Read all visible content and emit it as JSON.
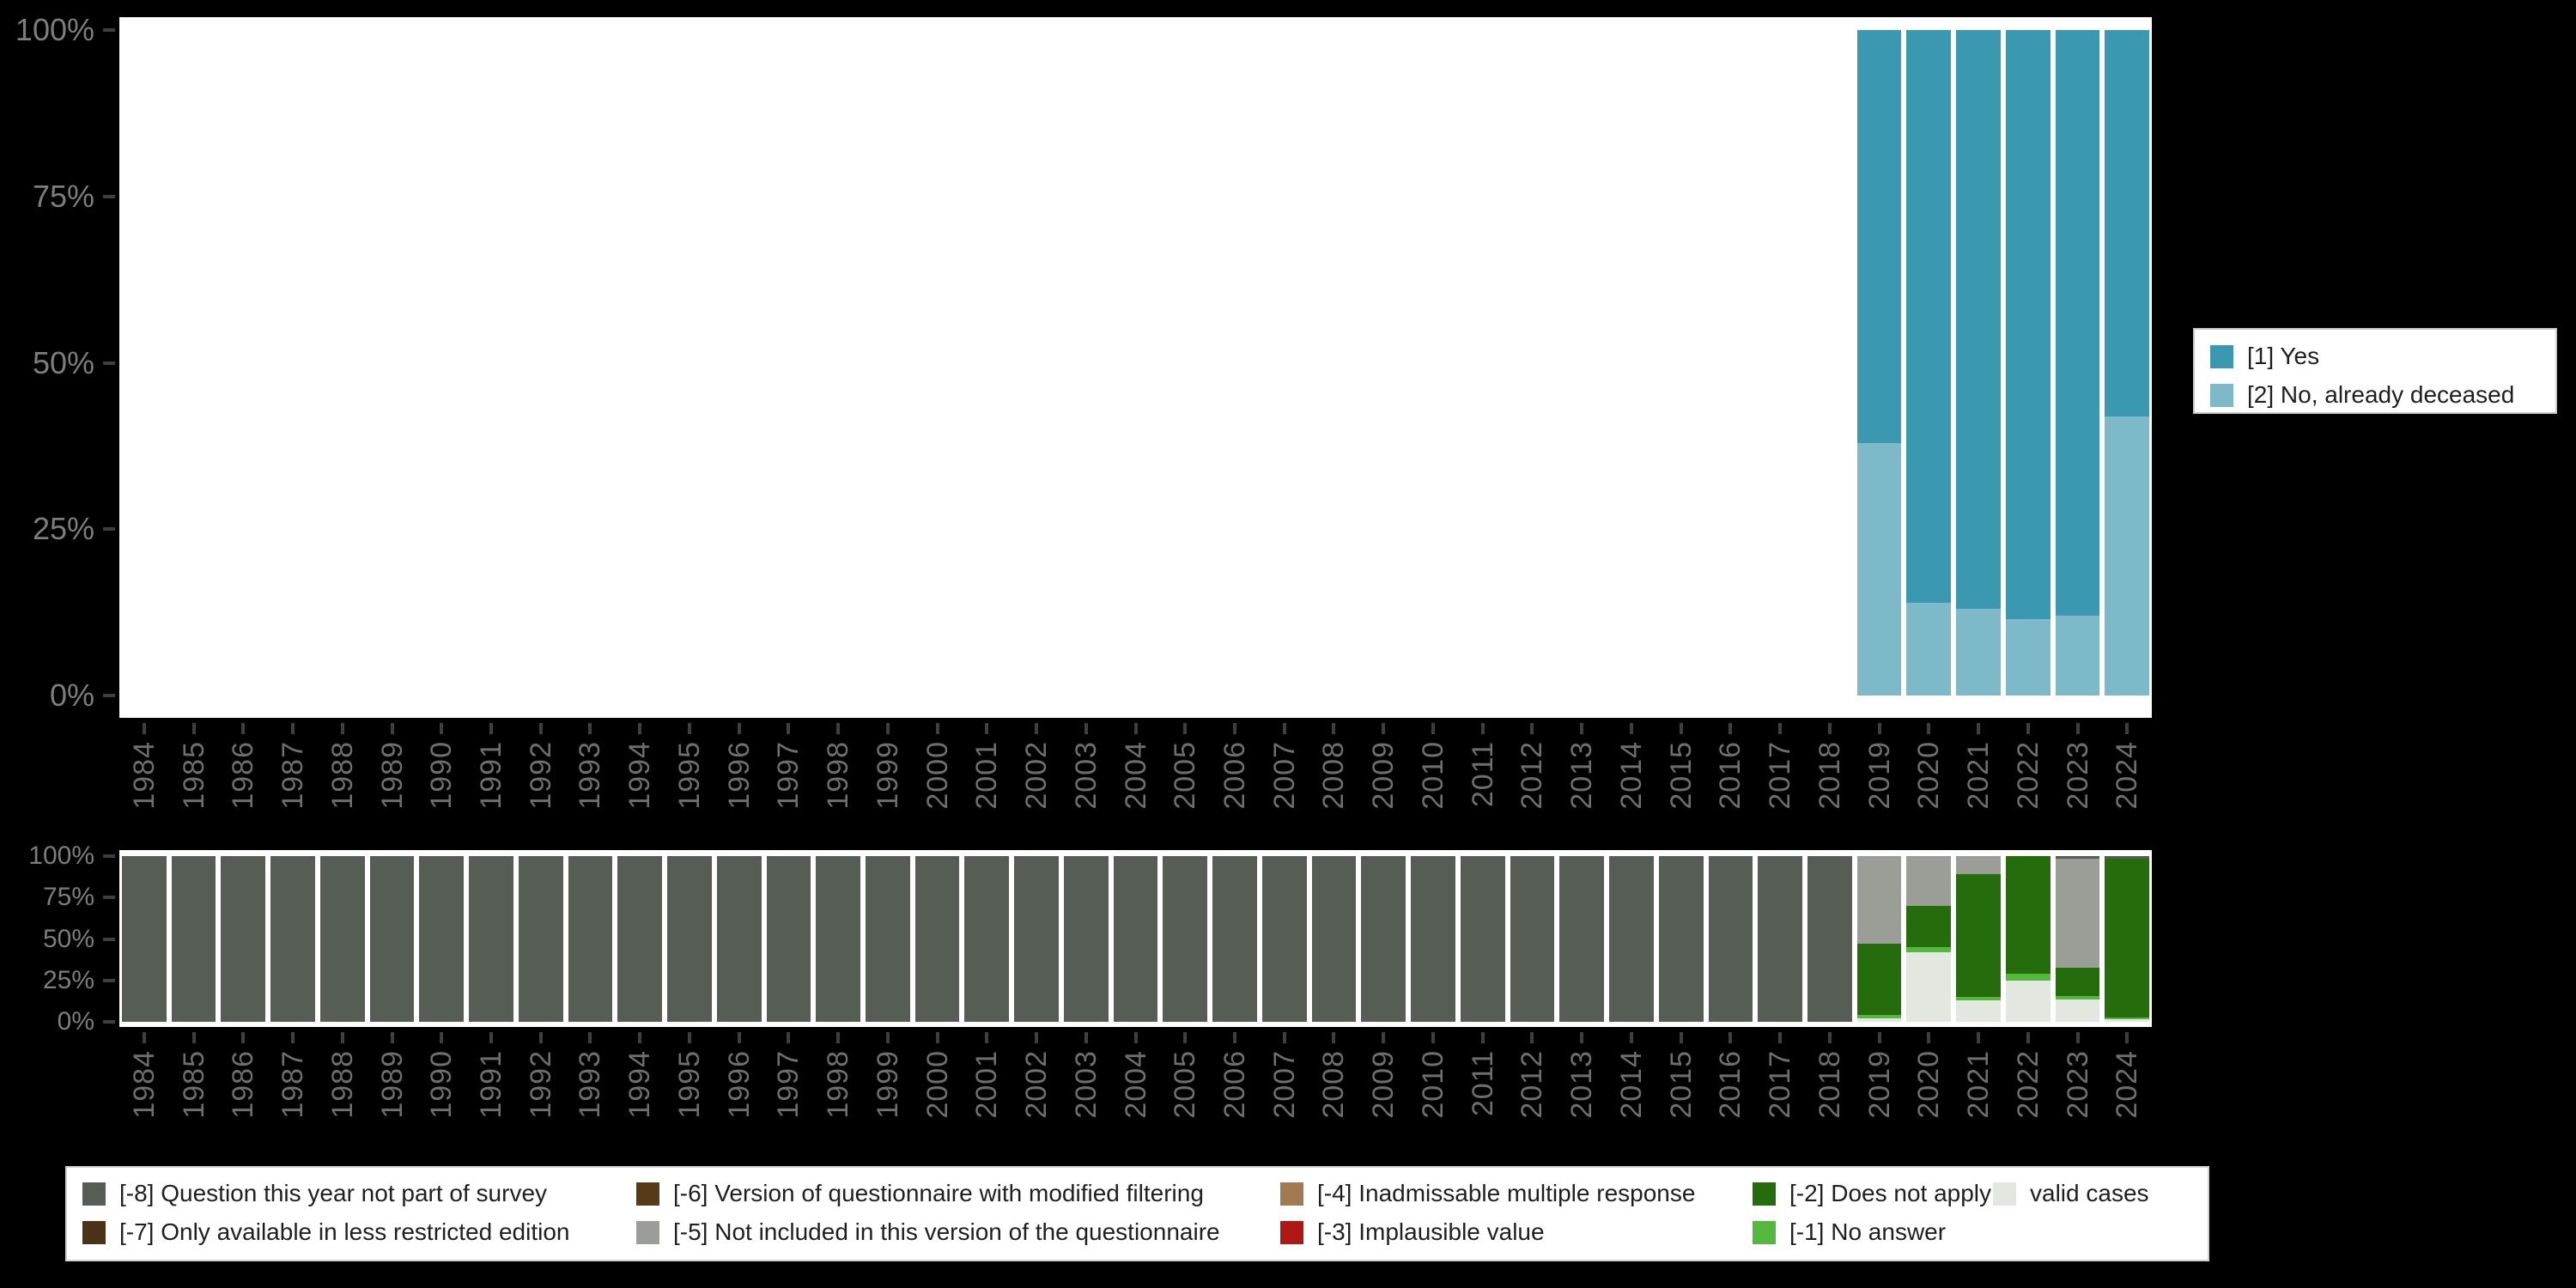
{
  "palette": {
    "yes": "#3a98b0",
    "no_deceased": "#7db9c8",
    "-8": "#565d54",
    "-7": "#4b3118",
    "-6": "#573a17",
    "-5": "#9a9e96",
    "-4": "#a27a52",
    "-3": "#b01813",
    "-2": "#256c0d",
    "-1": "#55b83e",
    "valid": "#e2e7e0"
  },
  "ui_colors": {
    "background": "#000000",
    "plot_background": "#ffffff",
    "y_axis_label": "#7d7d7d",
    "x_axis_label": "#6e6e6e",
    "tick_mark": "#3f3f3f",
    "legend_text": "#1f1f1f"
  },
  "response_legend": {
    "entries": [
      {
        "code": "yes",
        "label": "[1] Yes"
      },
      {
        "code": "no_deceased",
        "label": "[2] No, already deceased"
      }
    ]
  },
  "missing_legend": {
    "columns": [
      [
        {
          "code": "-8",
          "label": "[-8] Question this year not part of survey"
        },
        {
          "code": "-7",
          "label": "[-7] Only available in less restricted edition"
        }
      ],
      [
        {
          "code": "-6",
          "label": "[-6] Version of questionnaire with modified filtering"
        },
        {
          "code": "-5",
          "label": "[-5] Not included in this version of the questionnaire"
        }
      ],
      [
        {
          "code": "-4",
          "label": "[-4] Inadmissable multiple response"
        },
        {
          "code": "-3",
          "label": "[-3] Implausible value"
        }
      ],
      [
        {
          "code": "-2",
          "label": "[-2] Does not apply"
        },
        {
          "code": "-1",
          "label": "[-1] No answer"
        }
      ],
      [
        {
          "code": "valid",
          "label": "valid cases"
        }
      ]
    ]
  },
  "chart_data": [
    {
      "id": "responses",
      "type": "bar",
      "subtype": "stacked_percent",
      "title": "",
      "ylabel": "",
      "xlabel": "",
      "ylim": [
        0,
        100
      ],
      "grid": false,
      "legend_position": "right",
      "y_ticks": [
        "0%",
        "25%",
        "50%",
        "75%",
        "100%"
      ],
      "series_names": [
        "[1] Yes",
        "[2] No, already deceased"
      ],
      "bars": [
        {
          "year": 1984,
          "segments": []
        },
        {
          "year": 1985,
          "segments": []
        },
        {
          "year": 1986,
          "segments": []
        },
        {
          "year": 1987,
          "segments": []
        },
        {
          "year": 1988,
          "segments": []
        },
        {
          "year": 1989,
          "segments": []
        },
        {
          "year": 1990,
          "segments": []
        },
        {
          "year": 1991,
          "segments": []
        },
        {
          "year": 1992,
          "segments": []
        },
        {
          "year": 1993,
          "segments": []
        },
        {
          "year": 1994,
          "segments": []
        },
        {
          "year": 1995,
          "segments": []
        },
        {
          "year": 1996,
          "segments": []
        },
        {
          "year": 1997,
          "segments": []
        },
        {
          "year": 1998,
          "segments": []
        },
        {
          "year": 1999,
          "segments": []
        },
        {
          "year": 2000,
          "segments": []
        },
        {
          "year": 2001,
          "segments": []
        },
        {
          "year": 2002,
          "segments": []
        },
        {
          "year": 2003,
          "segments": []
        },
        {
          "year": 2004,
          "segments": []
        },
        {
          "year": 2005,
          "segments": []
        },
        {
          "year": 2006,
          "segments": []
        },
        {
          "year": 2007,
          "segments": []
        },
        {
          "year": 2008,
          "segments": []
        },
        {
          "year": 2009,
          "segments": []
        },
        {
          "year": 2010,
          "segments": []
        },
        {
          "year": 2011,
          "segments": []
        },
        {
          "year": 2012,
          "segments": []
        },
        {
          "year": 2013,
          "segments": []
        },
        {
          "year": 2014,
          "segments": []
        },
        {
          "year": 2015,
          "segments": []
        },
        {
          "year": 2016,
          "segments": []
        },
        {
          "year": 2017,
          "segments": []
        },
        {
          "year": 2018,
          "segments": []
        },
        {
          "year": 2019,
          "segments": [
            [
              "yes",
              62
            ],
            [
              "no_deceased",
              38
            ]
          ]
        },
        {
          "year": 2020,
          "segments": [
            [
              "yes",
              86
            ],
            [
              "no_deceased",
              14
            ]
          ]
        },
        {
          "year": 2021,
          "segments": [
            [
              "yes",
              87
            ],
            [
              "no_deceased",
              13
            ]
          ]
        },
        {
          "year": 2022,
          "segments": [
            [
              "yes",
              88.5
            ],
            [
              "no_deceased",
              11.5
            ]
          ]
        },
        {
          "year": 2023,
          "segments": [
            [
              "yes",
              88
            ],
            [
              "no_deceased",
              12
            ]
          ]
        },
        {
          "year": 2024,
          "segments": [
            [
              "yes",
              58
            ],
            [
              "no_deceased",
              42
            ]
          ]
        }
      ]
    },
    {
      "id": "missings",
      "type": "bar",
      "subtype": "stacked_percent",
      "title": "",
      "ylabel": "",
      "xlabel": "",
      "ylim": [
        0,
        100
      ],
      "grid": false,
      "legend_position": "bottom",
      "y_ticks": [
        "0%",
        "25%",
        "50%",
        "75%",
        "100%"
      ],
      "series_names": [
        "[-8] Question this year not part of survey",
        "[-7] Only available in less restricted edition",
        "[-6] Version of questionnaire with modified filtering",
        "[-5] Not included in this version of the questionnaire",
        "[-4] Inadmissable multiple response",
        "[-3] Implausible value",
        "[-2] Does not apply",
        "[-1] No answer",
        "valid cases"
      ],
      "bars": [
        {
          "year": 1984,
          "segments": [
            [
              "-8",
              100
            ]
          ]
        },
        {
          "year": 1985,
          "segments": [
            [
              "-8",
              100
            ]
          ]
        },
        {
          "year": 1986,
          "segments": [
            [
              "-8",
              100
            ]
          ]
        },
        {
          "year": 1987,
          "segments": [
            [
              "-8",
              100
            ]
          ]
        },
        {
          "year": 1988,
          "segments": [
            [
              "-8",
              100
            ]
          ]
        },
        {
          "year": 1989,
          "segments": [
            [
              "-8",
              100
            ]
          ]
        },
        {
          "year": 1990,
          "segments": [
            [
              "-8",
              100
            ]
          ]
        },
        {
          "year": 1991,
          "segments": [
            [
              "-8",
              100
            ]
          ]
        },
        {
          "year": 1992,
          "segments": [
            [
              "-8",
              100
            ]
          ]
        },
        {
          "year": 1993,
          "segments": [
            [
              "-8",
              100
            ]
          ]
        },
        {
          "year": 1994,
          "segments": [
            [
              "-8",
              100
            ]
          ]
        },
        {
          "year": 1995,
          "segments": [
            [
              "-8",
              100
            ]
          ]
        },
        {
          "year": 1996,
          "segments": [
            [
              "-8",
              100
            ]
          ]
        },
        {
          "year": 1997,
          "segments": [
            [
              "-8",
              100
            ]
          ]
        },
        {
          "year": 1998,
          "segments": [
            [
              "-8",
              100
            ]
          ]
        },
        {
          "year": 1999,
          "segments": [
            [
              "-8",
              100
            ]
          ]
        },
        {
          "year": 2000,
          "segments": [
            [
              "-8",
              100
            ]
          ]
        },
        {
          "year": 2001,
          "segments": [
            [
              "-8",
              100
            ]
          ]
        },
        {
          "year": 2002,
          "segments": [
            [
              "-8",
              100
            ]
          ]
        },
        {
          "year": 2003,
          "segments": [
            [
              "-8",
              100
            ]
          ]
        },
        {
          "year": 2004,
          "segments": [
            [
              "-8",
              100
            ]
          ]
        },
        {
          "year": 2005,
          "segments": [
            [
              "-8",
              100
            ]
          ]
        },
        {
          "year": 2006,
          "segments": [
            [
              "-8",
              100
            ]
          ]
        },
        {
          "year": 2007,
          "segments": [
            [
              "-8",
              100
            ]
          ]
        },
        {
          "year": 2008,
          "segments": [
            [
              "-8",
              100
            ]
          ]
        },
        {
          "year": 2009,
          "segments": [
            [
              "-8",
              100
            ]
          ]
        },
        {
          "year": 2010,
          "segments": [
            [
              "-8",
              100
            ]
          ]
        },
        {
          "year": 2011,
          "segments": [
            [
              "-8",
              100
            ]
          ]
        },
        {
          "year": 2012,
          "segments": [
            [
              "-8",
              100
            ]
          ]
        },
        {
          "year": 2013,
          "segments": [
            [
              "-8",
              100
            ]
          ]
        },
        {
          "year": 2014,
          "segments": [
            [
              "-8",
              100
            ]
          ]
        },
        {
          "year": 2015,
          "segments": [
            [
              "-8",
              100
            ]
          ]
        },
        {
          "year": 2016,
          "segments": [
            [
              "-8",
              100
            ]
          ]
        },
        {
          "year": 2017,
          "segments": [
            [
              "-8",
              100
            ]
          ]
        },
        {
          "year": 2018,
          "segments": [
            [
              "-8",
              100
            ]
          ]
        },
        {
          "year": 2019,
          "segments": [
            [
              "-5",
              53
            ],
            [
              "-2",
              43
            ],
            [
              "-1",
              2
            ],
            [
              "valid",
              2
            ]
          ]
        },
        {
          "year": 2020,
          "segments": [
            [
              "-5",
              30
            ],
            [
              "-2",
              25
            ],
            [
              "-1",
              3
            ],
            [
              "valid",
              42
            ]
          ]
        },
        {
          "year": 2021,
          "segments": [
            [
              "-5",
              11
            ],
            [
              "-2",
              74
            ],
            [
              "-1",
              2
            ],
            [
              "valid",
              13
            ]
          ]
        },
        {
          "year": 2022,
          "segments": [
            [
              "-2",
              71
            ],
            [
              "-1",
              4
            ],
            [
              "valid",
              25
            ]
          ]
        },
        {
          "year": 2023,
          "segments": [
            [
              "-8",
              1.5
            ],
            [
              "-5",
              66
            ],
            [
              "-2",
              17
            ],
            [
              "-1",
              2
            ],
            [
              "valid",
              13.5
            ]
          ]
        },
        {
          "year": 2024,
          "segments": [
            [
              "-8",
              1.5
            ],
            [
              "-2",
              96
            ],
            [
              "-1",
              1.2
            ],
            [
              "valid",
              1.3
            ]
          ]
        }
      ]
    }
  ]
}
